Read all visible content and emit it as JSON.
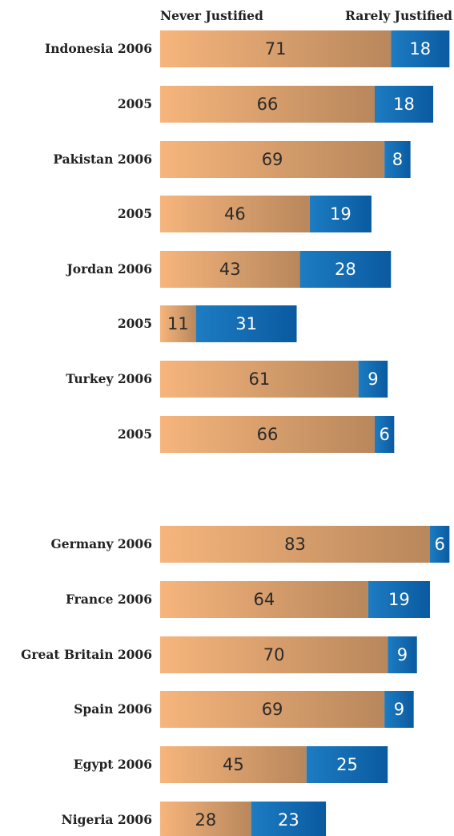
{
  "colors": {
    "never_light": "#f6b57c",
    "never_dark": "#b8875c",
    "rarely_light": "#1d7cc2",
    "rarely_dark": "#0a5aa0",
    "label_text": "#222222"
  },
  "chart_data": {
    "type": "bar",
    "orientation": "horizontal",
    "stacked": true,
    "title": "",
    "xlabel": "",
    "ylabel": "",
    "xlim": [
      0,
      89
    ],
    "grid": false,
    "legend": [
      "Never Justified",
      "Rarely Justified"
    ],
    "legend_placement": "top",
    "categories": [
      "Indonesia 2006",
      "2005",
      "Pakistan 2006",
      "2005",
      "Jordan 2006",
      "2005",
      "Turkey 2006",
      "2005",
      "Germany 2006",
      "France 2006",
      "Great Britain 2006",
      "Spain 2006",
      "Egypt 2006",
      "Nigeria 2006"
    ],
    "series": [
      {
        "name": "Never Justified",
        "values": [
          71,
          66,
          69,
          46,
          43,
          11,
          61,
          66,
          83,
          64,
          70,
          69,
          45,
          28
        ]
      },
      {
        "name": "Rarely Justified",
        "values": [
          18,
          18,
          8,
          19,
          28,
          31,
          9,
          6,
          6,
          19,
          9,
          9,
          25,
          23
        ]
      }
    ]
  }
}
